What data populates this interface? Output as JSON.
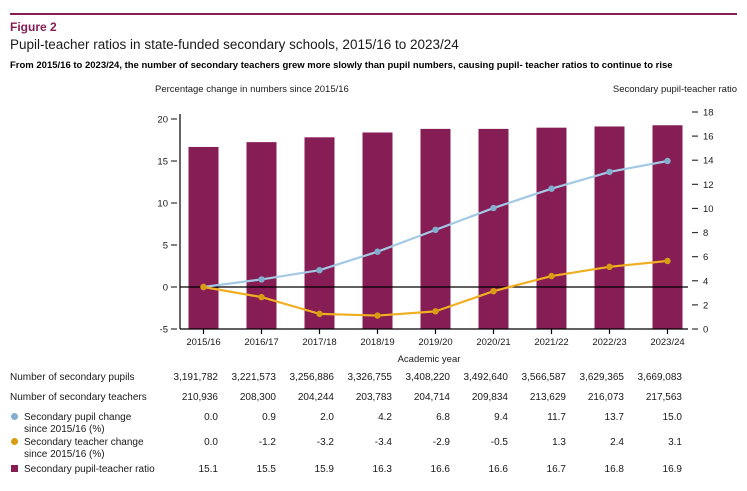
{
  "figure": {
    "label": "Figure 2",
    "title": "Pupil-teacher ratios in state-funded secondary schools, 2015/16 to 2023/24",
    "statement": "From 2015/16 to 2023/24, the number of secondary teachers grew more slowly than pupil numbers, causing pupil- teacher ratios to continue to rise"
  },
  "colors": {
    "maroon": "#861D54",
    "blue": "#A3C9E4",
    "blue_marker": "#84AECF",
    "yellow": "#EFAF21",
    "yellow_marker": "#D89C12",
    "axis_text": "#1a1a1a"
  },
  "chart_data": {
    "type": "combo-bar-line",
    "categories": [
      "2015/16",
      "2016/17",
      "2017/18",
      "2018/19",
      "2019/20",
      "2020/21",
      "2021/22",
      "2022/23",
      "2023/24"
    ],
    "xlabel": "Academic year",
    "left_axis": {
      "title": "Percentage change in numbers since 2015/16",
      "min": -5,
      "max": 20,
      "step": 5
    },
    "right_axis": {
      "title": "Secondary pupil-teacher ratio",
      "min": 0,
      "max": 18,
      "step": 2
    },
    "grid": "off",
    "series": [
      {
        "name": "Secondary pupil change since 2015/16 (%)",
        "type": "line",
        "axis": "left",
        "values": [
          0.0,
          0.9,
          2.0,
          4.2,
          6.8,
          9.4,
          11.7,
          13.7,
          15.0
        ]
      },
      {
        "name": "Secondary teacher change since 2015/16 (%)",
        "type": "line",
        "axis": "left",
        "values": [
          0.0,
          -1.2,
          -3.2,
          -3.4,
          -2.9,
          -0.5,
          1.3,
          2.4,
          3.1
        ]
      },
      {
        "name": "Secondary pupil-teacher ratio",
        "type": "bar",
        "axis": "right",
        "values": [
          15.1,
          15.5,
          15.9,
          16.3,
          16.6,
          16.6,
          16.7,
          16.8,
          16.9
        ]
      }
    ]
  },
  "table": {
    "axis_group_label": "Academic year",
    "rows": [
      {
        "label": "Number of secondary pupils",
        "label2": null,
        "marker": null,
        "values": [
          "3,191,782",
          "3,221,573",
          "3,256,886",
          "3,326,755",
          "3,408,220",
          "3,492,640",
          "3,566,587",
          "3,629,365",
          "3,669,083"
        ]
      },
      {
        "label": "Number of secondary teachers",
        "label2": null,
        "marker": null,
        "values": [
          "210,936",
          "208,300",
          "204,244",
          "203,783",
          "204,714",
          "209,834",
          "213,629",
          "216,073",
          "217,563"
        ]
      },
      {
        "label": "Secondary pupil change",
        "label2": "since 2015/16 (%)",
        "marker": "circle-blue",
        "values": [
          "0.0",
          "0.9",
          "2.0",
          "4.2",
          "6.8",
          "9.4",
          "11.7",
          "13.7",
          "15.0"
        ]
      },
      {
        "label": "Secondary teacher change",
        "label2": "since 2015/16 (%)",
        "marker": "circle-yellow",
        "values": [
          "0.0",
          "-1.2",
          "-3.2",
          "-3.4",
          "-2.9",
          "-0.5",
          "1.3",
          "2.4",
          "3.1"
        ]
      },
      {
        "label": "Secondary pupil-teacher ratio",
        "label2": null,
        "marker": "square-maroon",
        "values": [
          "15.1",
          "15.5",
          "15.9",
          "16.3",
          "16.6",
          "16.6",
          "16.7",
          "16.8",
          "16.9"
        ]
      }
    ]
  }
}
